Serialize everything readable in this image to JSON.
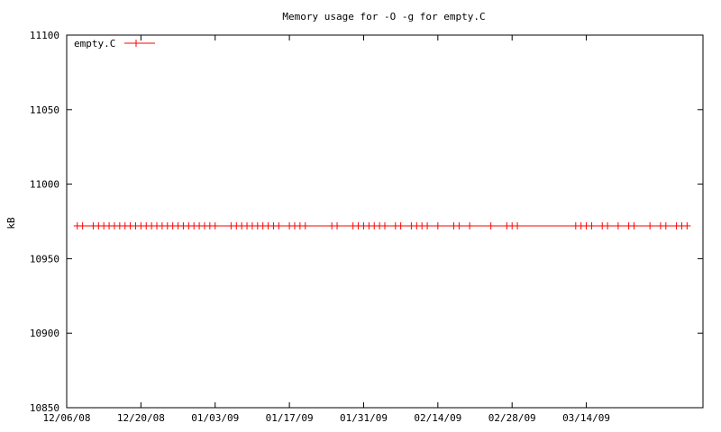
{
  "chart_data": {
    "type": "line",
    "title": "Memory usage for -O -g for empty.C",
    "xlabel": "",
    "ylabel": "kB",
    "ylim": [
      10850,
      11100
    ],
    "xlim": [
      "2008-12-06",
      "2009-04-05"
    ],
    "y_ticks": [
      "10850",
      "10900",
      "10950",
      "11000",
      "11050",
      "11100"
    ],
    "x_ticks": [
      "12/06/08",
      "12/20/08",
      "01/03/09",
      "01/17/09",
      "01/31/09",
      "02/14/09",
      "02/28/09",
      "03/14/09"
    ],
    "x_tick_dates": [
      "2008-12-06",
      "2008-12-20",
      "2009-01-03",
      "2009-01-17",
      "2009-01-31",
      "2009-02-14",
      "2009-02-28",
      "2009-03-14"
    ],
    "grid": false,
    "legend": "top-left",
    "series": [
      {
        "name": "empty.C",
        "color": "#ff0000",
        "marker": "plus",
        "points": [
          {
            "x": "2008-12-08",
            "y": 10972
          },
          {
            "x": "2008-12-09",
            "y": 10972
          },
          {
            "x": "2008-12-11",
            "y": 10972
          },
          {
            "x": "2008-12-12",
            "y": 10972
          },
          {
            "x": "2008-12-13",
            "y": 10972
          },
          {
            "x": "2008-12-14",
            "y": 10972
          },
          {
            "x": "2008-12-15",
            "y": 10972
          },
          {
            "x": "2008-12-16",
            "y": 10972
          },
          {
            "x": "2008-12-17",
            "y": 10972
          },
          {
            "x": "2008-12-18",
            "y": 10972
          },
          {
            "x": "2008-12-19",
            "y": 10972
          },
          {
            "x": "2008-12-20",
            "y": 10972
          },
          {
            "x": "2008-12-21",
            "y": 10972
          },
          {
            "x": "2008-12-22",
            "y": 10972
          },
          {
            "x": "2008-12-23",
            "y": 10972
          },
          {
            "x": "2008-12-24",
            "y": 10972
          },
          {
            "x": "2008-12-25",
            "y": 10972
          },
          {
            "x": "2008-12-26",
            "y": 10972
          },
          {
            "x": "2008-12-27",
            "y": 10972
          },
          {
            "x": "2008-12-28",
            "y": 10972
          },
          {
            "x": "2008-12-29",
            "y": 10972
          },
          {
            "x": "2008-12-30",
            "y": 10972
          },
          {
            "x": "2008-12-31",
            "y": 10972
          },
          {
            "x": "2009-01-01",
            "y": 10972
          },
          {
            "x": "2009-01-02",
            "y": 10972
          },
          {
            "x": "2009-01-03",
            "y": 10972
          },
          {
            "x": "2009-01-06",
            "y": 10972
          },
          {
            "x": "2009-01-07",
            "y": 10972
          },
          {
            "x": "2009-01-08",
            "y": 10972
          },
          {
            "x": "2009-01-09",
            "y": 10972
          },
          {
            "x": "2009-01-10",
            "y": 10972
          },
          {
            "x": "2009-01-11",
            "y": 10972
          },
          {
            "x": "2009-01-12",
            "y": 10972
          },
          {
            "x": "2009-01-13",
            "y": 10972
          },
          {
            "x": "2009-01-14",
            "y": 10972
          },
          {
            "x": "2009-01-15",
            "y": 10972
          },
          {
            "x": "2009-01-17",
            "y": 10972
          },
          {
            "x": "2009-01-18",
            "y": 10972
          },
          {
            "x": "2009-01-19",
            "y": 10972
          },
          {
            "x": "2009-01-20",
            "y": 10972
          },
          {
            "x": "2009-01-25",
            "y": 10972
          },
          {
            "x": "2009-01-26",
            "y": 10972
          },
          {
            "x": "2009-01-29",
            "y": 10972
          },
          {
            "x": "2009-01-30",
            "y": 10972
          },
          {
            "x": "2009-01-31",
            "y": 10972
          },
          {
            "x": "2009-02-01",
            "y": 10972
          },
          {
            "x": "2009-02-02",
            "y": 10972
          },
          {
            "x": "2009-02-03",
            "y": 10972
          },
          {
            "x": "2009-02-04",
            "y": 10972
          },
          {
            "x": "2009-02-06",
            "y": 10972
          },
          {
            "x": "2009-02-07",
            "y": 10972
          },
          {
            "x": "2009-02-09",
            "y": 10972
          },
          {
            "x": "2009-02-10",
            "y": 10972
          },
          {
            "x": "2009-02-11",
            "y": 10972
          },
          {
            "x": "2009-02-12",
            "y": 10972
          },
          {
            "x": "2009-02-14",
            "y": 10972
          },
          {
            "x": "2009-02-17",
            "y": 10972
          },
          {
            "x": "2009-02-18",
            "y": 10972
          },
          {
            "x": "2009-02-20",
            "y": 10972
          },
          {
            "x": "2009-02-24",
            "y": 10972
          },
          {
            "x": "2009-02-27",
            "y": 10972
          },
          {
            "x": "2009-02-28",
            "y": 10972
          },
          {
            "x": "2009-03-01",
            "y": 10972
          },
          {
            "x": "2009-03-12",
            "y": 10972
          },
          {
            "x": "2009-03-13",
            "y": 10972
          },
          {
            "x": "2009-03-14",
            "y": 10972
          },
          {
            "x": "2009-03-15",
            "y": 10972
          },
          {
            "x": "2009-03-17",
            "y": 10972
          },
          {
            "x": "2009-03-18",
            "y": 10972
          },
          {
            "x": "2009-03-20",
            "y": 10972
          },
          {
            "x": "2009-03-22",
            "y": 10972
          },
          {
            "x": "2009-03-23",
            "y": 10972
          },
          {
            "x": "2009-03-26",
            "y": 10972
          },
          {
            "x": "2009-03-28",
            "y": 10972
          },
          {
            "x": "2009-03-29",
            "y": 10972
          },
          {
            "x": "2009-03-31",
            "y": 10972
          },
          {
            "x": "2009-04-01",
            "y": 10972
          },
          {
            "x": "2009-04-02",
            "y": 10972
          }
        ]
      }
    ]
  }
}
